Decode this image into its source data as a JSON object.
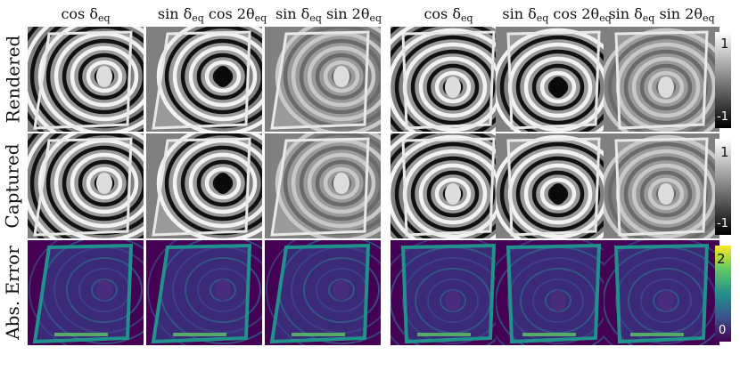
{
  "columns": [
    {
      "base": "cos δ",
      "sub": "eq",
      "tail": "",
      "sub2": ""
    },
    {
      "base": "sin δ",
      "sub": "eq",
      "tail": " cos 2θ",
      "sub2": "eq"
    },
    {
      "base": "sin δ",
      "sub": "eq",
      "tail": " sin 2θ",
      "sub2": "eq"
    },
    {
      "base": "cos δ",
      "sub": "eq",
      "tail": "",
      "sub2": ""
    },
    {
      "base": "sin δ",
      "sub": "eq",
      "tail": " cos 2θ",
      "sub2": "eq"
    },
    {
      "base": "sin δ",
      "sub": "eq",
      "tail": " sin 2θ",
      "sub2": "eq"
    }
  ],
  "rows": [
    {
      "label": "Rendered",
      "kind": "gray",
      "cbar_max": "1",
      "cbar_min": "-1"
    },
    {
      "label": "Captured",
      "kind": "gray",
      "cbar_max": "1",
      "cbar_min": "-1"
    },
    {
      "label": "Abs. Error",
      "kind": "viridis",
      "cbar_max": "2",
      "cbar_min": "0"
    }
  ],
  "colors": {
    "viridis_dark": "#440154",
    "viridis_mid": "#21918c",
    "viridis_light": "#fde725",
    "gray_bg": "#808080"
  }
}
